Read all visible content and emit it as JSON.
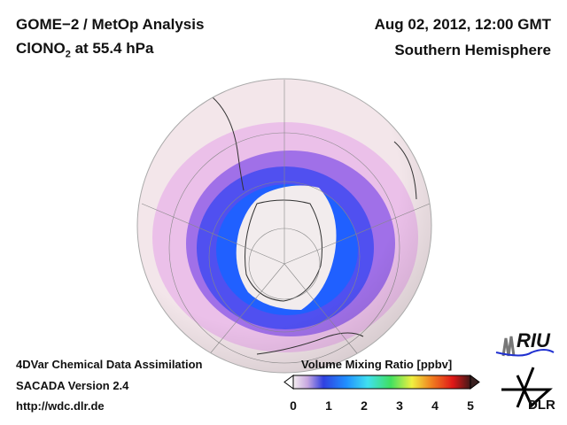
{
  "header": {
    "line1": "GOME−2 / MetOp Analysis",
    "species_main": "ClONO",
    "species_sub": "2",
    "species_rest": " at 55.4 hPa",
    "date": "Aug 02, 2012, 12:00 GMT",
    "region": "Southern Hemisphere"
  },
  "footer": {
    "line1": "4DVar Chemical Data Assimilation",
    "line2": "SACADA Version 2.4",
    "line3": "http://wdc.dlr.de"
  },
  "colorbar": {
    "title": "Volume Mixing Ratio [ppbv]",
    "ticks": [
      "0",
      "1",
      "2",
      "3",
      "4",
      "5"
    ],
    "range": [
      0,
      5
    ],
    "colors": [
      "#f4eef0",
      "#c8a8e0",
      "#3040e0",
      "#2080ff",
      "#40e0f0",
      "#40e060",
      "#f0f040",
      "#f08020",
      "#e82020",
      "#401818"
    ]
  },
  "logos": {
    "riu": "RIU",
    "dlr": "DLR"
  }
}
